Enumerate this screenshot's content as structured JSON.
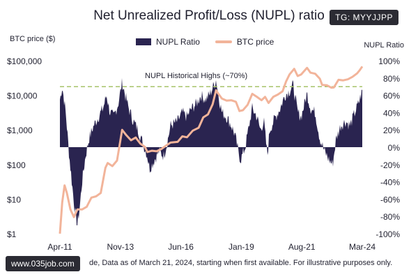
{
  "watermark_top": "TG: MYYJJPP",
  "watermark_bottom": "www.035job.com",
  "footnote": "de, Data as of March 21, 2024, starting when first available. For illustrative purposes only.",
  "colors": {
    "nupl": "#2a2450",
    "btc": "#f2b49a",
    "threshold": "#a7c36a"
  },
  "chart_data": {
    "type": "bar",
    "title": "Net Unrealized Profit/Loss (NUPL) ratio",
    "ylabel_left": "BTC price ($)",
    "ylabel_right": "NUPL Ratio",
    "legend": {
      "placement": "top-center",
      "items": [
        "NUPL Ratio",
        "BTC price"
      ]
    },
    "x_ticks": [
      "Apr-11",
      "Nov-13",
      "Jun-16",
      "Jan-19",
      "Aug-21",
      "Mar-24"
    ],
    "y_left": {
      "scale": "log",
      "ticks": [
        "$1",
        "$10",
        "$100",
        "$1,000",
        "$10,000",
        "$100,000"
      ],
      "range": [
        1,
        100000
      ]
    },
    "y_right": {
      "ticks": [
        "-100%",
        "-80%",
        "-60%",
        "-40%",
        "-20%",
        "0%",
        "20%",
        "40%",
        "60%",
        "80%",
        "100%"
      ],
      "range": [
        -100,
        100
      ]
    },
    "annotation": {
      "text": "NUPL Historical Highs (~70%)",
      "value": 70
    },
    "x_range": [
      2011.25,
      2024.22
    ],
    "nupl_series": {
      "name": "NUPL Ratio",
      "points": [
        [
          2011.25,
          55
        ],
        [
          2011.35,
          70
        ],
        [
          2011.5,
          40
        ],
        [
          2011.65,
          -10
        ],
        [
          2011.8,
          -50
        ],
        [
          2011.9,
          -75
        ],
        [
          2012.0,
          -90
        ],
        [
          2012.1,
          -70
        ],
        [
          2012.2,
          -40
        ],
        [
          2012.35,
          -10
        ],
        [
          2012.5,
          10
        ],
        [
          2012.7,
          25
        ],
        [
          2012.9,
          35
        ],
        [
          2013.1,
          45
        ],
        [
          2013.25,
          60
        ],
        [
          2013.4,
          40
        ],
        [
          2013.55,
          35
        ],
        [
          2013.75,
          50
        ],
        [
          2013.92,
          75
        ],
        [
          2014.05,
          60
        ],
        [
          2014.2,
          45
        ],
        [
          2014.4,
          30
        ],
        [
          2014.6,
          20
        ],
        [
          2014.8,
          5
        ],
        [
          2015.0,
          -10
        ],
        [
          2015.1,
          -25
        ],
        [
          2015.3,
          -15
        ],
        [
          2015.5,
          -5
        ],
        [
          2015.7,
          -10
        ],
        [
          2015.85,
          5
        ],
        [
          2016.0,
          25
        ],
        [
          2016.3,
          30
        ],
        [
          2016.5,
          40
        ],
        [
          2016.7,
          35
        ],
        [
          2016.9,
          45
        ],
        [
          2017.1,
          50
        ],
        [
          2017.3,
          60
        ],
        [
          2017.5,
          55
        ],
        [
          2017.7,
          62
        ],
        [
          2017.95,
          78
        ],
        [
          2018.05,
          60
        ],
        [
          2018.2,
          40
        ],
        [
          2018.4,
          35
        ],
        [
          2018.6,
          25
        ],
        [
          2018.75,
          15
        ],
        [
          2018.9,
          -5
        ],
        [
          2019.0,
          -15
        ],
        [
          2019.2,
          0
        ],
        [
          2019.4,
          30
        ],
        [
          2019.5,
          45
        ],
        [
          2019.7,
          35
        ],
        [
          2019.85,
          20
        ],
        [
          2020.0,
          30
        ],
        [
          2020.15,
          -10
        ],
        [
          2020.25,
          20
        ],
        [
          2020.5,
          35
        ],
        [
          2020.7,
          45
        ],
        [
          2020.9,
          60
        ],
        [
          2021.1,
          65
        ],
        [
          2021.25,
          72
        ],
        [
          2021.45,
          40
        ],
        [
          2021.6,
          35
        ],
        [
          2021.85,
          62
        ],
        [
          2022.0,
          45
        ],
        [
          2022.2,
          40
        ],
        [
          2022.4,
          10
        ],
        [
          2022.6,
          -5
        ],
        [
          2022.8,
          -15
        ],
        [
          2022.95,
          -20
        ],
        [
          2023.1,
          10
        ],
        [
          2023.3,
          25
        ],
        [
          2023.5,
          30
        ],
        [
          2023.7,
          25
        ],
        [
          2023.9,
          40
        ],
        [
          2024.05,
          50
        ],
        [
          2024.22,
          65
        ]
      ]
    },
    "btc_series": {
      "name": "BTC price",
      "points": [
        [
          2011.25,
          1
        ],
        [
          2011.35,
          8
        ],
        [
          2011.45,
          25
        ],
        [
          2011.55,
          15
        ],
        [
          2011.7,
          5
        ],
        [
          2011.85,
          3
        ],
        [
          2012.0,
          5
        ],
        [
          2012.2,
          5
        ],
        [
          2012.4,
          6
        ],
        [
          2012.6,
          11
        ],
        [
          2012.8,
          12
        ],
        [
          2013.0,
          15
        ],
        [
          2013.2,
          80
        ],
        [
          2013.3,
          110
        ],
        [
          2013.5,
          90
        ],
        [
          2013.7,
          130
        ],
        [
          2013.92,
          1000
        ],
        [
          2014.1,
          700
        ],
        [
          2014.3,
          500
        ],
        [
          2014.5,
          600
        ],
        [
          2014.7,
          400
        ],
        [
          2014.9,
          320
        ],
        [
          2015.0,
          230
        ],
        [
          2015.2,
          250
        ],
        [
          2015.4,
          240
        ],
        [
          2015.6,
          280
        ],
        [
          2015.8,
          350
        ],
        [
          2016.0,
          430
        ],
        [
          2016.3,
          450
        ],
        [
          2016.5,
          650
        ],
        [
          2016.7,
          610
        ],
        [
          2016.95,
          950
        ],
        [
          2017.2,
          1150
        ],
        [
          2017.4,
          2300
        ],
        [
          2017.6,
          2800
        ],
        [
          2017.8,
          5500
        ],
        [
          2017.95,
          14000
        ],
        [
          2018.05,
          11000
        ],
        [
          2018.2,
          8000
        ],
        [
          2018.4,
          7000
        ],
        [
          2018.6,
          7200
        ],
        [
          2018.8,
          6500
        ],
        [
          2018.95,
          3500
        ],
        [
          2019.1,
          3700
        ],
        [
          2019.3,
          5300
        ],
        [
          2019.5,
          11000
        ],
        [
          2019.7,
          9000
        ],
        [
          2019.9,
          7200
        ],
        [
          2020.05,
          9000
        ],
        [
          2020.2,
          6000
        ],
        [
          2020.4,
          9000
        ],
        [
          2020.6,
          10500
        ],
        [
          2020.8,
          13000
        ],
        [
          2020.95,
          25000
        ],
        [
          2021.1,
          40000
        ],
        [
          2021.3,
          58000
        ],
        [
          2021.45,
          36000
        ],
        [
          2021.6,
          40000
        ],
        [
          2021.85,
          62000
        ],
        [
          2022.0,
          45000
        ],
        [
          2022.2,
          42000
        ],
        [
          2022.4,
          30000
        ],
        [
          2022.5,
          20000
        ],
        [
          2022.7,
          19500
        ],
        [
          2022.9,
          16500
        ],
        [
          2023.0,
          16800
        ],
        [
          2023.2,
          28000
        ],
        [
          2023.4,
          27000
        ],
        [
          2023.6,
          29000
        ],
        [
          2023.8,
          34000
        ],
        [
          2024.0,
          43000
        ],
        [
          2024.1,
          52000
        ],
        [
          2024.22,
          68000
        ]
      ]
    }
  }
}
